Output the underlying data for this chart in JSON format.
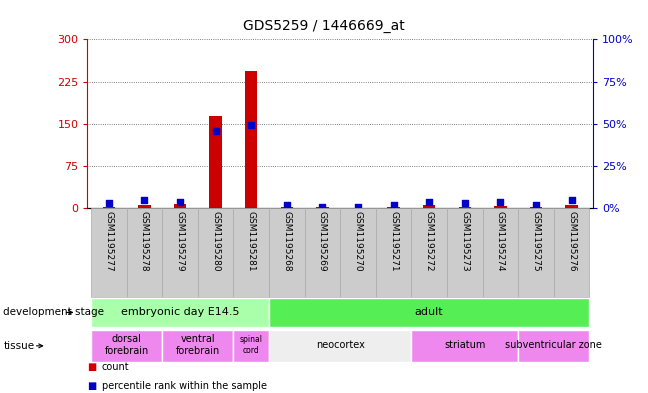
{
  "title": "GDS5259 / 1446669_at",
  "samples": [
    "GSM1195277",
    "GSM1195278",
    "GSM1195279",
    "GSM1195280",
    "GSM1195281",
    "GSM1195268",
    "GSM1195269",
    "GSM1195270",
    "GSM1195271",
    "GSM1195272",
    "GSM1195273",
    "GSM1195274",
    "GSM1195275",
    "GSM1195276"
  ],
  "counts": [
    3,
    5,
    8,
    163,
    243,
    2,
    2,
    1,
    2,
    5,
    3,
    4,
    2,
    6
  ],
  "percentiles": [
    3,
    5,
    4,
    46,
    49,
    2,
    1,
    1,
    2,
    4,
    3,
    4,
    2,
    5
  ],
  "ylim_left": [
    0,
    300
  ],
  "ylim_right": [
    0,
    100
  ],
  "yticks_left": [
    0,
    75,
    150,
    225,
    300
  ],
  "yticks_right": [
    0,
    25,
    50,
    75,
    100
  ],
  "bar_color": "#cc0000",
  "dot_color": "#0000cc",
  "grid_color": "#555555",
  "bg_color": "#ffffff",
  "development_stages": [
    {
      "label": "embryonic day E14.5",
      "start": 0,
      "end": 5,
      "color": "#aaffaa"
    },
    {
      "label": "adult",
      "start": 5,
      "end": 14,
      "color": "#55ee55"
    }
  ],
  "tissues": [
    {
      "label": "dorsal\nforebrain",
      "start": 0,
      "end": 2,
      "color": "#ee88ee"
    },
    {
      "label": "ventral\nforebrain",
      "start": 2,
      "end": 4,
      "color": "#ee88ee"
    },
    {
      "label": "spinal\ncord",
      "start": 4,
      "end": 5,
      "color": "#ee88ee"
    },
    {
      "label": "neocortex",
      "start": 5,
      "end": 9,
      "color": "#eeeeee"
    },
    {
      "label": "striatum",
      "start": 9,
      "end": 12,
      "color": "#ee88ee"
    },
    {
      "label": "subventricular zone",
      "start": 12,
      "end": 14,
      "color": "#ee88ee"
    }
  ],
  "left_axis_color": "#cc0000",
  "right_axis_color": "#0000cc",
  "sample_bg_color": "#cccccc",
  "sample_border_color": "#aaaaaa"
}
